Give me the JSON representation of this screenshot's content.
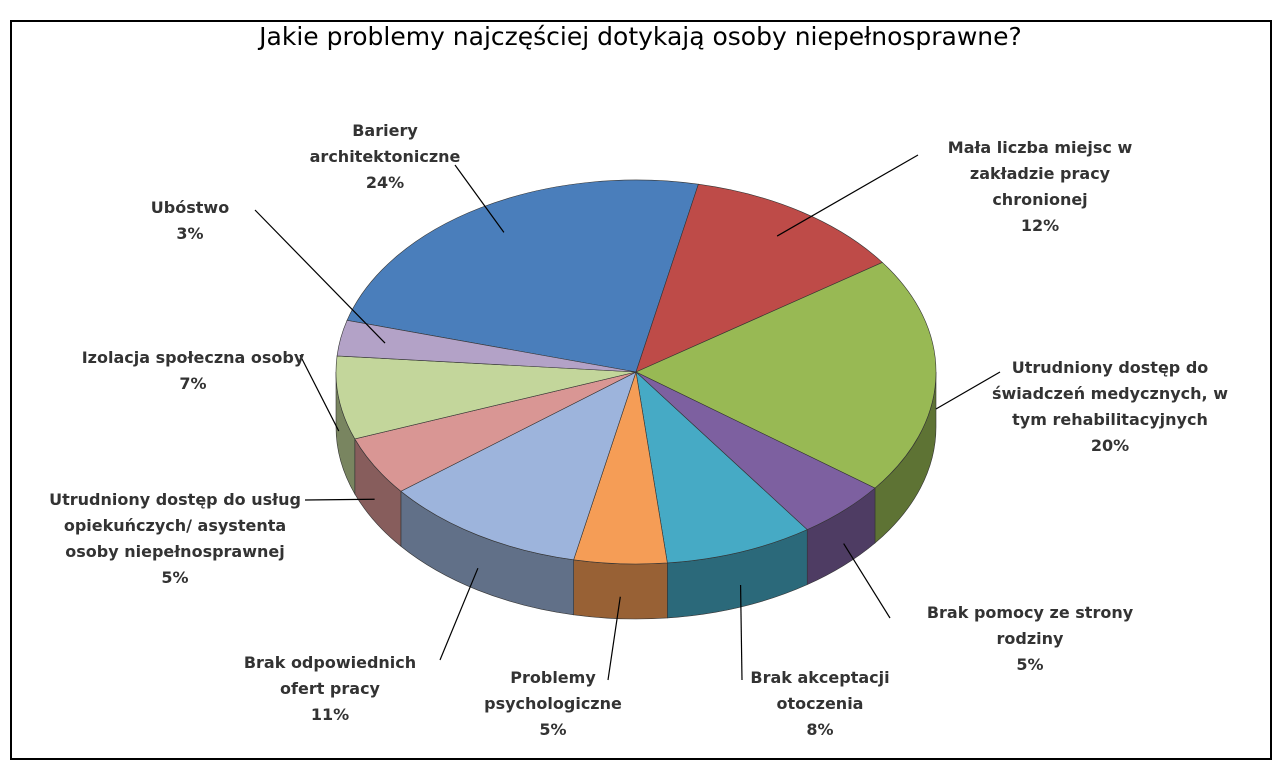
{
  "chart_data": {
    "type": "pie",
    "title": "Jakie problemy najczęściej dotykają osoby niepełnosprawne?",
    "categories": [
      "Bariery architektoniczne",
      "Mała liczba miejsc w zakładzie pracy chronionej",
      "Utrudniony dostęp do świadczeń medycznych, w tym rehabilitacyjnych",
      "Brak pomocy ze strony rodziny",
      "Brak akceptacji otoczenia",
      "Problemy psychologiczne",
      "Brak odpowiednich ofert pracy",
      "Utrudniony dostęp do usług opiekuńczych/ asystenta osoby niepełnosprawnej",
      "Izolacja społeczna osoby",
      "Ubóstwo"
    ],
    "values": [
      24,
      12,
      20,
      5,
      8,
      5,
      11,
      5,
      7,
      3
    ],
    "value_labels": [
      "24%",
      "12%",
      "20%",
      "5%",
      "8%",
      "5%",
      "11%",
      "5%",
      "7%",
      "3%"
    ],
    "colors": [
      "#4a7ebb",
      "#be4b48",
      "#98b954",
      "#7d60a0",
      "#46aac5",
      "#f59d56",
      "#9db4dc",
      "#d99694",
      "#c3d69b",
      "#b3a2c7"
    ]
  }
}
